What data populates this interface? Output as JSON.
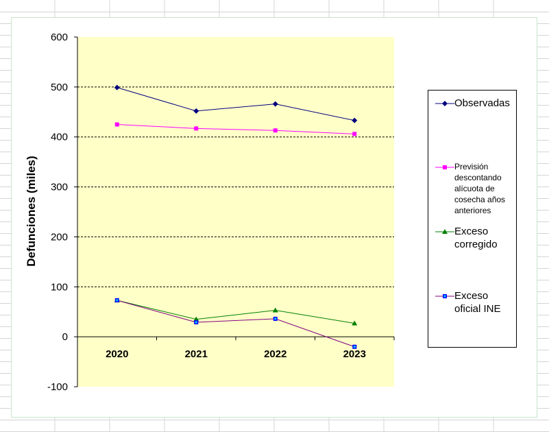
{
  "chart_data": {
    "type": "line",
    "title": "",
    "xlabel": "",
    "ylabel": "Defunciones (miles)",
    "categories": [
      "2020",
      "2021",
      "2022",
      "2023"
    ],
    "ylim": [
      -100,
      600
    ],
    "yticks": [
      -100,
      0,
      100,
      200,
      300,
      400,
      500,
      600
    ],
    "grid": true,
    "legend_position": "right",
    "plot_background": "#ffffc8",
    "series": [
      {
        "name": "Observadas",
        "values": [
          499,
          452,
          466,
          433
        ],
        "color": "#000080",
        "marker": "diamond"
      },
      {
        "name": "Previsión descontando alícuota de cosecha años anteriores",
        "values": [
          425,
          417,
          413,
          406
        ],
        "color": "#ff00ff",
        "marker": "square"
      },
      {
        "name": "Exceso corregido",
        "values": [
          73,
          35,
          53,
          27
        ],
        "color": "#008000",
        "marker": "triangle"
      },
      {
        "name": "Exceso oficial INE",
        "values": [
          73,
          29,
          36,
          -20
        ],
        "color": "#800080",
        "marker": "square-blue"
      }
    ]
  }
}
